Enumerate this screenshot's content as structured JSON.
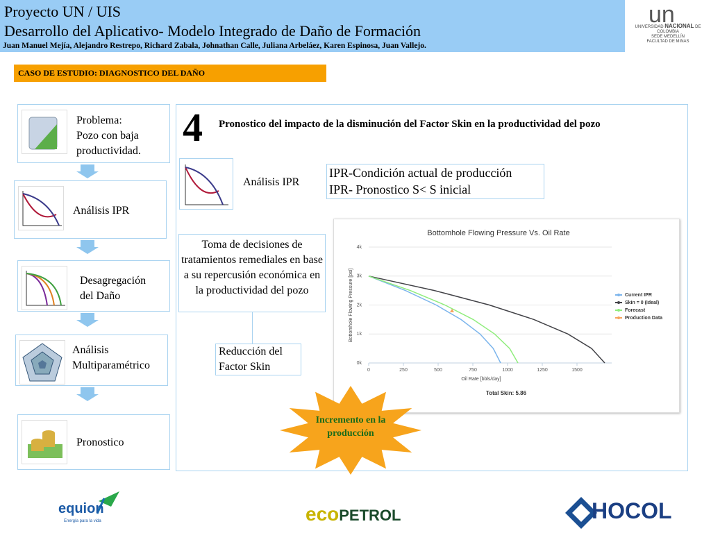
{
  "header": {
    "title": "Proyecto UN / UIS",
    "subtitle": "Desarrollo  del Aplicativo- Modelo Integrado de Daño de Formación",
    "authors": "Juan Manuel Mejía,  Alejandro Restrepo, Richard Zabala, Johnathan Calle, Juliana Arbeláez, Karen Espinosa, Juan Vallejo."
  },
  "university": {
    "mark": "un",
    "name_start": "UNIVERSIDAD",
    "name_mid": "NACIONAL",
    "name_end": "DE COLOMBIA",
    "campus": "SEDE MEDELLÍN",
    "faculty": "FACULTAD DE MINAS"
  },
  "case_title": "CASO DE ESTUDIO: DIAGNOSTICO DEL DAÑO",
  "steps": [
    [
      "Problema:",
      "Pozo con baja",
      "productividad."
    ],
    [
      "Análisis IPR"
    ],
    [
      "Desagregación",
      "del Daño"
    ],
    [
      "Análisis",
      "Multiparamétrico"
    ],
    [
      "Pronostico"
    ]
  ],
  "main": {
    "number": "4",
    "heading": "Pronostico del impacto de la disminución del Factor Skin en la  productividad del pozo",
    "ipr_label": "Análisis IPR",
    "ipr_items": [
      "IPR-Condición actual de producción",
      "IPR- Pronostico S< S inicial"
    ],
    "decision": "Toma de decisiones de tratamientos remediales en base a su repercusión económica en la productividad del pozo",
    "reduction": "Reducción del Factor Skin",
    "burst": "Incremento en la producción"
  },
  "chart_data": {
    "type": "line",
    "title": "Bottomhole Flowing Pressure Vs. Oil Rate",
    "x_label": "Oil Rate [bbls/day]",
    "y_label": "Bottomhole Flowing Pressure [psi]",
    "annotation": "Total Skin: 5.86",
    "xlim": [
      0,
      1750
    ],
    "xticks": [
      0,
      250,
      500,
      750,
      1000,
      1250,
      1500
    ],
    "ylim": [
      0,
      4000
    ],
    "yticks": [
      {
        "value": 0,
        "label": "0k"
      },
      {
        "value": 1000,
        "label": "1k"
      },
      {
        "value": 2000,
        "label": "2k"
      },
      {
        "value": 3000,
        "label": "3k"
      },
      {
        "value": 4000,
        "label": "4k"
      }
    ],
    "grid": true,
    "legend": "right",
    "series": [
      {
        "name": "Current IPR",
        "color": "#7cb5ec",
        "x": [
          0,
          264,
          486,
          665,
          802,
          897,
          950
        ],
        "values": [
          3000,
          2500,
          2000,
          1500,
          1000,
          500,
          0
        ]
      },
      {
        "name": "Skin = 0 (ideal)",
        "color": "#434348",
        "x": [
          0,
          473,
          869,
          1190,
          1435,
          1605,
          1700
        ],
        "values": [
          3000,
          2500,
          2000,
          1500,
          1000,
          500,
          0
        ]
      },
      {
        "name": "Forecast",
        "color": "#90ed7d",
        "x": [
          0,
          299,
          549,
          753,
          907,
          1015,
          1075
        ],
        "values": [
          3000,
          2500,
          2000,
          1500,
          1000,
          500,
          0
        ]
      },
      {
        "name": "Production Data",
        "color": "#f7a35c",
        "mode": "scatter",
        "x": [
          600
        ],
        "values": [
          1800
        ]
      }
    ]
  },
  "logos": {
    "equion": "equion",
    "equion_tagline": "Energía para la vida",
    "ecopetrol_a": "eco",
    "ecopetrol_b": "PETROL",
    "hocol": "HOCOL"
  }
}
